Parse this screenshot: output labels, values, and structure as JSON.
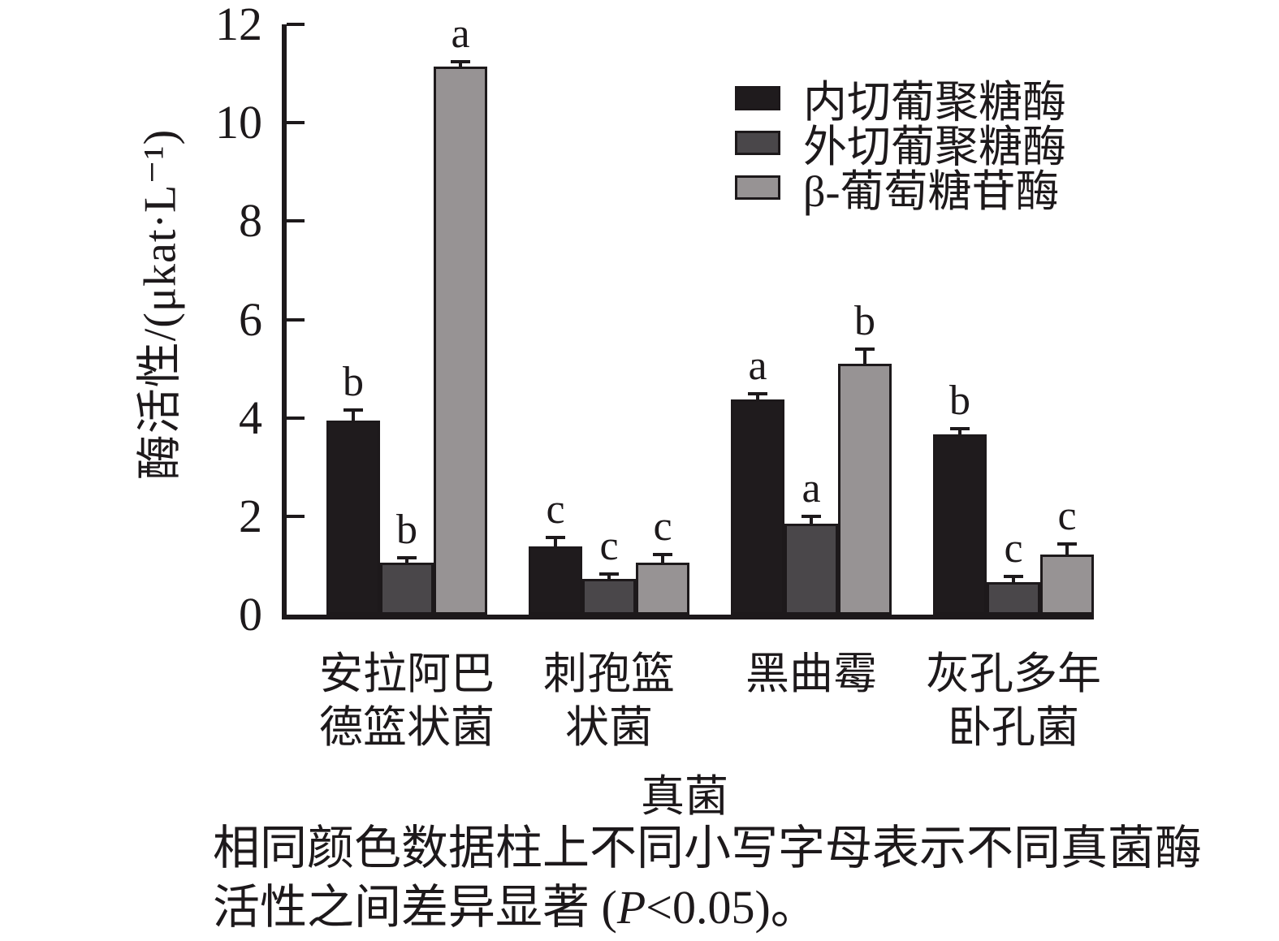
{
  "chart_data": {
    "type": "bar",
    "title": "",
    "xlabel": "真菌",
    "ylabel": "酶活性/(μkat·L⁻¹)",
    "ylim": [
      0,
      12
    ],
    "yticks": [
      0,
      2,
      4,
      6,
      8,
      10,
      12
    ],
    "grid": false,
    "legend_position": "upper right",
    "categories": [
      "安拉阿巴德篮状菌",
      "刺孢篮状菌",
      "黑曲霉",
      "灰孔多年卧孔菌"
    ],
    "category_label_lines": [
      [
        "安拉阿巴",
        "德篮状菌"
      ],
      [
        "刺孢篮",
        "状菌"
      ],
      [
        "黑曲霉"
      ],
      [
        "灰孔多年",
        "卧孔菌"
      ]
    ],
    "series": [
      {
        "name": "内切葡聚糖酶",
        "color": "#1f1b1d",
        "values": [
          3.95,
          1.38,
          4.37,
          3.67
        ],
        "errors": [
          0.18,
          0.16,
          0.09,
          0.08
        ],
        "sig_letters": [
          "b",
          "c",
          "a",
          "b"
        ]
      },
      {
        "name": "外切葡聚糖酶",
        "color": "#4a474a",
        "values": [
          1.05,
          0.73,
          1.85,
          0.66
        ],
        "errors": [
          0.07,
          0.06,
          0.11,
          0.08
        ],
        "sig_letters": [
          "b",
          "c",
          "a",
          "c"
        ]
      },
      {
        "name": "β-葡萄糖苷酶",
        "color": "#979394",
        "values": [
          11.15,
          1.06,
          5.1,
          1.22
        ],
        "errors": [
          0.06,
          0.13,
          0.26,
          0.18
        ],
        "sig_letters": [
          "a",
          "c",
          "b",
          "c"
        ]
      }
    ]
  },
  "note": {
    "line1": "相同颜色数据柱上不同小写字母表示不同真菌酶",
    "line2_parts": [
      "活性之间差异显著 (",
      "P",
      "<0.05)。"
    ]
  }
}
